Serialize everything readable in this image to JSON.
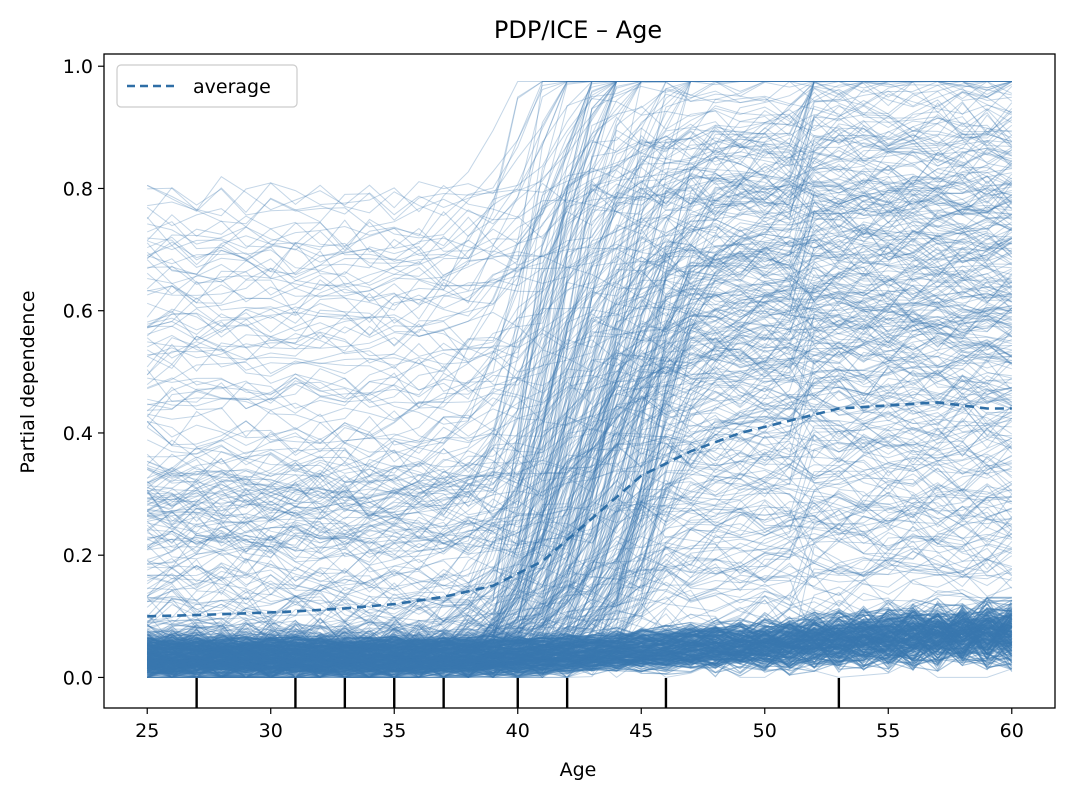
{
  "chart_data": {
    "type": "line",
    "title": "PDP/ICE – Age",
    "xlabel": "Age",
    "ylabel": "Partial dependence",
    "xlim": [
      23.25,
      61.75
    ],
    "ylim": [
      -0.05,
      1.02
    ],
    "x_ticks": [
      "25",
      "30",
      "35",
      "40",
      "45",
      "50",
      "55",
      "60"
    ],
    "y_ticks": [
      "0.0",
      "0.2",
      "0.4",
      "0.6",
      "0.8",
      "1.0"
    ],
    "grid": false,
    "legend": {
      "position": "top-left",
      "entries": [
        "average"
      ]
    },
    "colors": {
      "ice": "#3a78b0",
      "average": "#2e6ea6",
      "rug": "#000000"
    },
    "series": [
      {
        "name": "average",
        "style": "dashed",
        "x": [
          25,
          27,
          29,
          31,
          33,
          35,
          37,
          39,
          41,
          43,
          45,
          47,
          49,
          51,
          53,
          55,
          57,
          59,
          60
        ],
        "values": [
          0.1,
          0.102,
          0.105,
          0.108,
          0.113,
          0.12,
          0.132,
          0.15,
          0.19,
          0.26,
          0.33,
          0.37,
          0.4,
          0.42,
          0.44,
          0.445,
          0.45,
          0.44,
          0.44
        ]
      }
    ],
    "rug_x": [
      27,
      31,
      33,
      35,
      37,
      40,
      42,
      46,
      53
    ]
  }
}
